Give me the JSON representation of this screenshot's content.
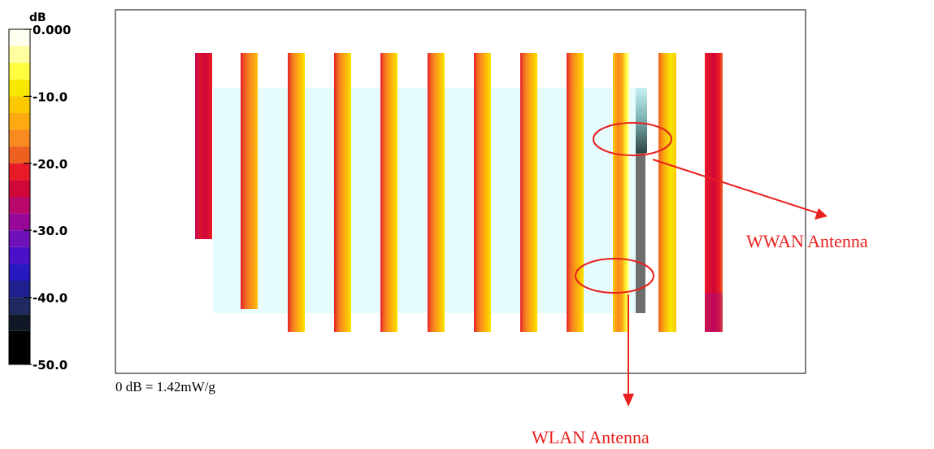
{
  "chart_data": {
    "type": "heatmap",
    "colorbar": {
      "unit": "dB",
      "ticks": [
        {
          "value": 0,
          "label": "0.000"
        },
        {
          "value": -10,
          "label": "-10.0"
        },
        {
          "value": -20,
          "label": "-20.0"
        },
        {
          "value": -30,
          "label": "-30.0"
        },
        {
          "value": -40,
          "label": "-40.0"
        },
        {
          "value": -50,
          "label": "-50.0"
        }
      ],
      "range": [
        -50,
        0
      ],
      "levels": [
        {
          "from": -2.5,
          "to": 0,
          "color": "#fffff0"
        },
        {
          "from": -5,
          "to": -2.5,
          "color": "#ffffa0"
        },
        {
          "from": -7.5,
          "to": -5,
          "color": "#ffff40"
        },
        {
          "from": -10,
          "to": -7.5,
          "color": "#f8e800"
        },
        {
          "from": -12.5,
          "to": -10,
          "color": "#fcc800"
        },
        {
          "from": -15,
          "to": -12.5,
          "color": "#fcaa10"
        },
        {
          "from": -17.5,
          "to": -15,
          "color": "#f88a20"
        },
        {
          "from": -20,
          "to": -17.5,
          "color": "#ee6020"
        },
        {
          "from": -22.5,
          "to": -20,
          "color": "#e81a28"
        },
        {
          "from": -25,
          "to": -22.5,
          "color": "#d00838"
        },
        {
          "from": -27.5,
          "to": -25,
          "color": "#b8086a"
        },
        {
          "from": -30,
          "to": -27.5,
          "color": "#980898"
        },
        {
          "from": -32.5,
          "to": -30,
          "color": "#7010b8"
        },
        {
          "from": -35,
          "to": -32.5,
          "color": "#4a10c8"
        },
        {
          "from": -37.5,
          "to": -35,
          "color": "#2818c0"
        },
        {
          "from": -40,
          "to": -37.5,
          "color": "#1e2090"
        },
        {
          "from": -42.5,
          "to": -40,
          "color": "#1e2a60"
        },
        {
          "from": -45,
          "to": -42.5,
          "color": "#101828"
        },
        {
          "from": -50,
          "to": -45,
          "color": "#000000"
        }
      ]
    },
    "reference": "0 dB = 1.42mW/g",
    "annotations": [
      {
        "label": "WWAN Antenna"
      },
      {
        "label": "WLAN Antenna"
      }
    ],
    "colors": {
      "background": "#e6fbfb",
      "antenna_bar": "#6e6e6e",
      "annotation": "#e8211e",
      "frame": "#000000"
    }
  }
}
